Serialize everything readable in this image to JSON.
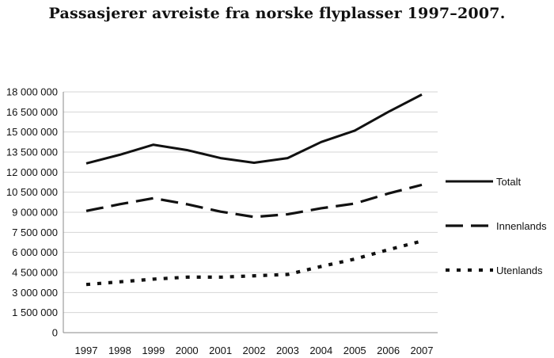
{
  "chart_data": {
    "type": "line",
    "title": "Passasjerer avreiste fra norske flyplasser 1997–2007.",
    "xlabel": "",
    "ylabel": "",
    "x": [
      "1997",
      "1998",
      "1999",
      "2000",
      "2001",
      "2002",
      "2003",
      "2004",
      "2005",
      "2006",
      "2007"
    ],
    "ylim": [
      0,
      18000000
    ],
    "yticks": [
      {
        "value": 0,
        "label": "0"
      },
      {
        "value": 1500000,
        "label": "1 500 000"
      },
      {
        "value": 3000000,
        "label": "3 000 000"
      },
      {
        "value": 4500000,
        "label": "4 500 000"
      },
      {
        "value": 6000000,
        "label": "6 000 000"
      },
      {
        "value": 7500000,
        "label": "7 500 000"
      },
      {
        "value": 9000000,
        "label": "9 000 000"
      },
      {
        "value": 10500000,
        "label": "10 500 000"
      },
      {
        "value": 12000000,
        "label": "12 000 000"
      },
      {
        "value": 13500000,
        "label": "13 500 000"
      },
      {
        "value": 15000000,
        "label": "15 000 000"
      },
      {
        "value": 16500000,
        "label": "16 500 000"
      },
      {
        "value": 18000000,
        "label": "18 000 000"
      }
    ],
    "grid": true,
    "legend_position": "right",
    "series": [
      {
        "name": "Totalt",
        "style": "solid",
        "values": [
          12650000,
          13300000,
          14050000,
          13650000,
          13050000,
          12700000,
          13050000,
          14250000,
          15100000,
          16500000,
          17800000
        ]
      },
      {
        "name": "Innenlands",
        "style": "dashed",
        "values": [
          9100000,
          9600000,
          10050000,
          9600000,
          9050000,
          8650000,
          8850000,
          9300000,
          9650000,
          10400000,
          11050000
        ]
      },
      {
        "name": "Utenlands",
        "style": "dotted",
        "values": [
          3600000,
          3800000,
          4000000,
          4150000,
          4150000,
          4250000,
          4350000,
          4950000,
          5500000,
          6200000,
          6850000
        ]
      }
    ],
    "colors": {
      "line": "#111111",
      "grid": "#d4d4d4",
      "axis": "#888888"
    }
  }
}
